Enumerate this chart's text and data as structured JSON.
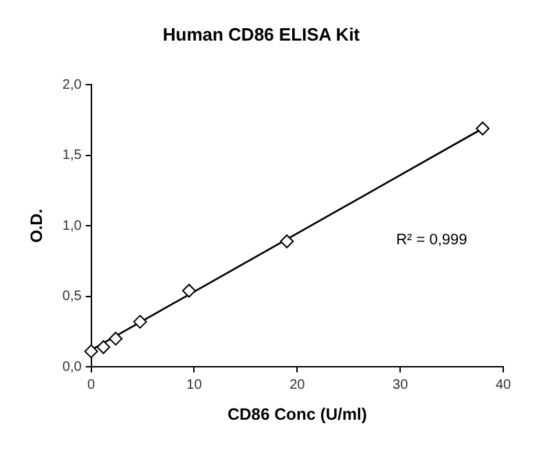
{
  "chart_data": {
    "type": "scatter",
    "title": "Human CD86 ELISA Kit",
    "xlabel": "CD86 Conc (U/ml)",
    "ylabel": "O.D.",
    "annotations": [
      "R² = 0,999"
    ],
    "marker": "diamond",
    "grid": false,
    "legend": false,
    "xlim": [
      0,
      40
    ],
    "xticks": [
      0,
      10,
      20,
      30,
      40
    ],
    "ylim": [
      0,
      2
    ],
    "yticks": [
      {
        "value": 0,
        "label": "0,0"
      },
      {
        "value": 0.5,
        "label": "0,5"
      },
      {
        "value": 1,
        "label": "1,0"
      },
      {
        "value": 1.5,
        "label": "1,5"
      },
      {
        "value": 2,
        "label": "2,0"
      }
    ],
    "series": [
      {
        "color": "#000000",
        "x": [
          0,
          1.19,
          2.38,
          4.75,
          9.5,
          19,
          38
        ],
        "values": [
          0.11,
          0.14,
          0.2,
          0.32,
          0.54,
          0.89,
          1.69
        ]
      },
      {
        "type": "line",
        "marker": "none",
        "color": "#000000",
        "x": [
          0,
          38
        ],
        "values": [
          0.12,
          1.69
        ]
      }
    ]
  }
}
